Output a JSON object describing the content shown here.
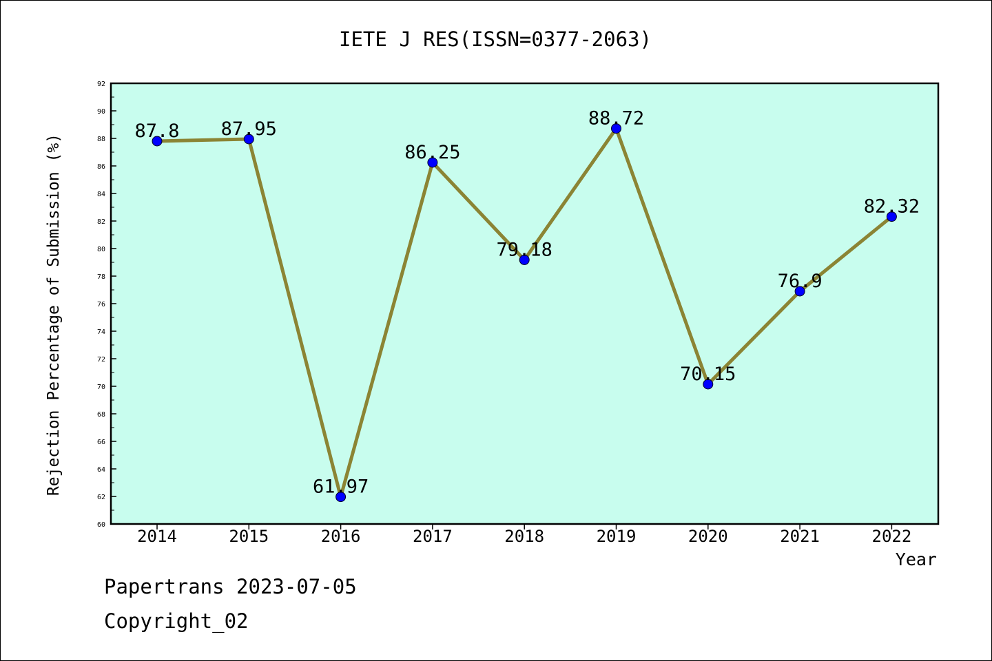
{
  "chart_data": {
    "type": "line",
    "title": "IETE J RES(ISSN=0377-2063)",
    "xlabel": "Year",
    "ylabel": "Rejection Percentage of Submission (%)",
    "categories": [
      "2014",
      "2015",
      "2016",
      "2017",
      "2018",
      "2019",
      "2020",
      "2021",
      "2022"
    ],
    "values": [
      87.8,
      87.95,
      61.97,
      86.25,
      79.18,
      88.72,
      70.15,
      76.9,
      82.32
    ],
    "data_labels": [
      "87.8",
      "87.95",
      "61.97",
      "86.25",
      "79.18",
      "88.72",
      "70.15",
      "76.9",
      "82.32"
    ],
    "ylim": [
      60,
      92
    ],
    "yticks": [
      60,
      62,
      64,
      66,
      68,
      70,
      72,
      74,
      76,
      78,
      80,
      82,
      84,
      86,
      88,
      90,
      92
    ],
    "grid": false,
    "legend": "none",
    "colors": {
      "plot_background": "#c8fdee",
      "line": "#8b8434",
      "marker": "#0000ff"
    }
  },
  "footer": {
    "line1": "Papertrans 2023-07-05",
    "line2": "Copyright_02"
  }
}
